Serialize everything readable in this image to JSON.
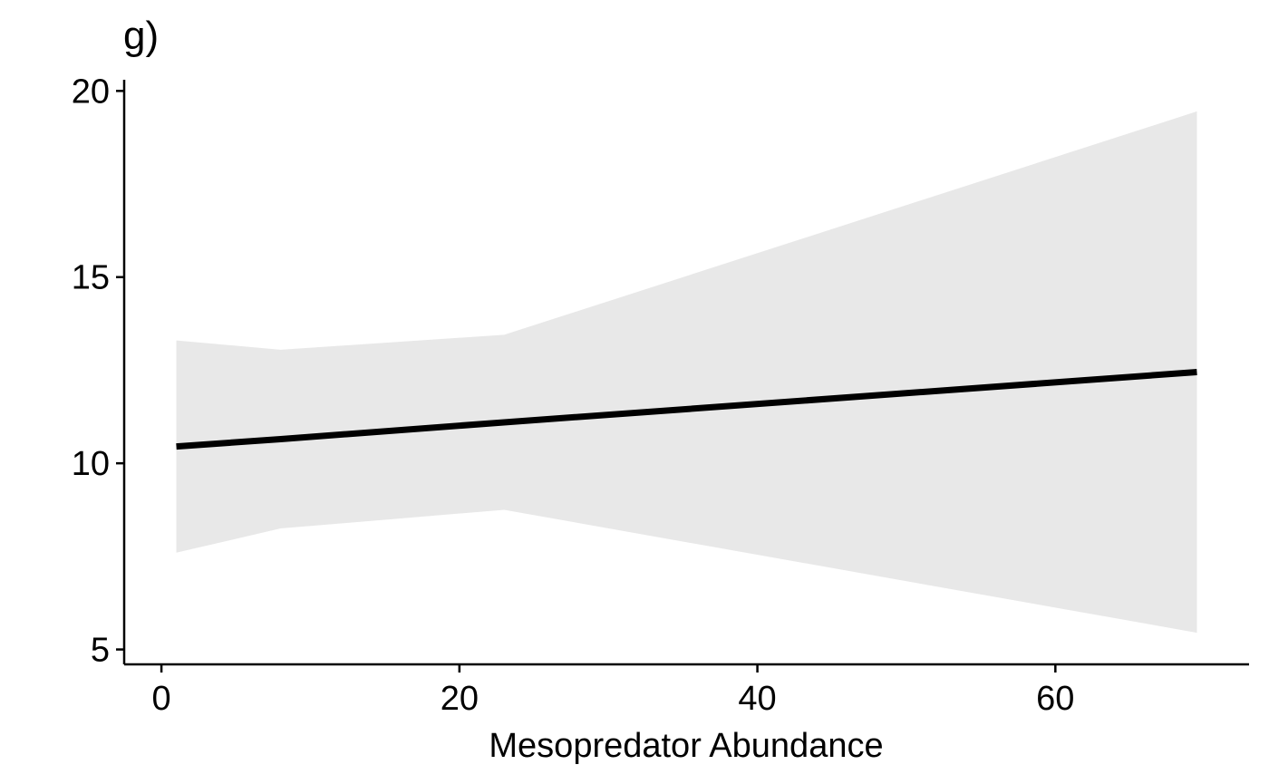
{
  "panel_label": "g)",
  "chart_data": {
    "type": "line",
    "title": "",
    "xlabel": "Mesopredator Abundance",
    "ylabel": "",
    "xlim": [
      -2.5,
      73
    ],
    "ylim": [
      4.6,
      20.3
    ],
    "x_ticks": [
      0,
      20,
      40,
      60
    ],
    "x_tick_labels": [
      "0",
      "20",
      "40",
      "60"
    ],
    "y_ticks": [
      5,
      10,
      15,
      20
    ],
    "y_tick_labels": [
      "5",
      "10",
      "15",
      "20"
    ],
    "grid": false,
    "legend": "none",
    "series": [
      {
        "x": [
          1,
          8,
          23,
          69.5
        ],
        "y": [
          10.45,
          10.65,
          11.1,
          12.45
        ]
      }
    ],
    "ribbon": {
      "x": [
        1,
        8,
        23,
        69.5
      ],
      "upper": [
        13.3,
        13.05,
        13.45,
        19.45
      ],
      "lower": [
        7.6,
        8.25,
        8.75,
        5.45
      ]
    },
    "colors": {
      "line": "#000000",
      "ribbon": "#e8e8e8",
      "axis": "#000000"
    }
  }
}
